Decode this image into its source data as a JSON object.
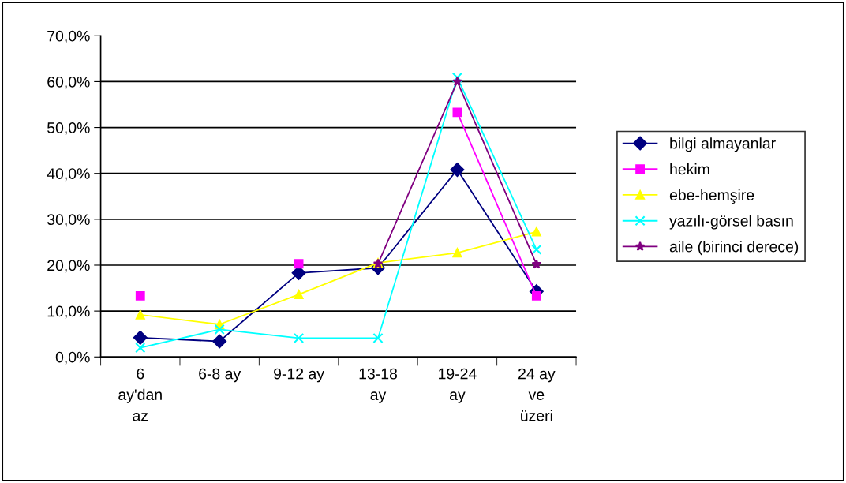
{
  "chart_data": {
    "type": "line",
    "categories": [
      "6\nay'dan\naz",
      "6-8 ay",
      "9-12 ay",
      "13-18\nay",
      "19-24\nay",
      "24 ay\nve\nüzeri"
    ],
    "series": [
      {
        "name": "bilgi almayanlar",
        "color": "#000080",
        "marker": "diamond",
        "values": [
          4.2,
          3.4,
          18.3,
          19.4,
          40.8,
          14.3
        ]
      },
      {
        "name": "hekim",
        "color": "#ff00ff",
        "marker": "square",
        "values": [
          13.3,
          null,
          20.3,
          null,
          53.3,
          13.3
        ]
      },
      {
        "name": "ebe-hemşire",
        "color": "#ffff00",
        "marker": "triangle",
        "values": [
          9.2,
          7.1,
          13.6,
          20.5,
          22.7,
          27.3
        ]
      },
      {
        "name": "yazılı-görsel basın",
        "color": "#00ffff",
        "marker": "cross",
        "values": [
          2.0,
          6.0,
          4.1,
          4.1,
          60.9,
          23.4
        ]
      },
      {
        "name": "aile (birinci derece)",
        "color": "#800080",
        "marker": "star",
        "values": [
          null,
          null,
          null,
          20.3,
          60.0,
          20.2
        ]
      }
    ],
    "ylim": [
      0,
      70
    ],
    "yticks": [
      {
        "value": 0,
        "label": "0,0%"
      },
      {
        "value": 10,
        "label": "10,0%"
      },
      {
        "value": 20,
        "label": "20,0%"
      },
      {
        "value": 30,
        "label": "30,0%"
      },
      {
        "value": 40,
        "label": "40,0%"
      },
      {
        "value": 50,
        "label": "50,0%"
      },
      {
        "value": 60,
        "label": "60,0%"
      },
      {
        "value": 70,
        "label": "70,0%"
      }
    ],
    "grid": "y",
    "legend": "right",
    "line_style": "solid"
  }
}
